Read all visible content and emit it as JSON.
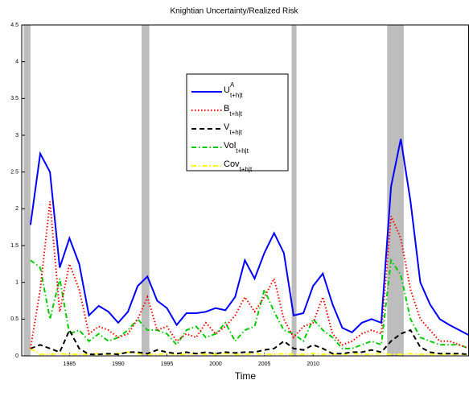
{
  "chart_data": {
    "type": "line",
    "title": "Knightian Uncertainty/Realized Risk",
    "xlabel": "Time",
    "xlim": [
      1980.1,
      2026
    ],
    "xticks": [
      1985,
      1990,
      1995,
      2000,
      2005,
      2010
    ],
    "ylim": [
      0,
      4.5
    ],
    "yticks": [
      0,
      0.5,
      1,
      1.5,
      2,
      2.5,
      3,
      3.5,
      4,
      4.5
    ],
    "recessions": [
      [
        1980.3,
        1981.0
      ],
      [
        1992.4,
        1993.2
      ],
      [
        2007.8,
        2008.3
      ],
      [
        2017.6,
        2019.3
      ]
    ],
    "recession_color": "#bdbdbd",
    "legend": "upper center",
    "x": [
      1981,
      1982,
      1983,
      1984,
      1985,
      1986,
      1987,
      1988,
      1989,
      1990,
      1991,
      1992,
      1993,
      1994,
      1995,
      1996,
      1997,
      1998,
      1999,
      2000,
      2001,
      2002,
      2003,
      2004,
      2005,
      2006,
      2007,
      2008,
      2009,
      2010,
      2011,
      2012,
      2013,
      2014,
      2015,
      2016,
      2017,
      2018,
      2019,
      2020,
      2021,
      2022,
      2023,
      2024,
      2025,
      2026
    ],
    "series": [
      {
        "name": "U",
        "name_sup": "A",
        "name_sub": "t+h|t",
        "color": "#0000ff",
        "style": "solid",
        "values": [
          1.78,
          2.75,
          2.5,
          1.2,
          1.6,
          1.25,
          0.55,
          0.68,
          0.6,
          0.45,
          0.6,
          0.95,
          1.08,
          0.75,
          0.65,
          0.42,
          0.58,
          0.58,
          0.6,
          0.65,
          0.62,
          0.8,
          1.3,
          1.05,
          1.4,
          1.67,
          1.4,
          0.55,
          0.58,
          0.95,
          1.12,
          0.7,
          0.38,
          0.32,
          0.45,
          0.5,
          0.45,
          2.3,
          2.95,
          2.1,
          1.0,
          0.7,
          0.5,
          0.42,
          0.35,
          0.28
        ]
      },
      {
        "name": "B",
        "name_sub": "t+h|t",
        "color": "#ff0000",
        "style": "dotted",
        "values": [
          0.1,
          0.9,
          2.1,
          0.6,
          1.25,
          0.9,
          0.3,
          0.4,
          0.35,
          0.25,
          0.3,
          0.5,
          0.8,
          0.35,
          0.4,
          0.2,
          0.3,
          0.25,
          0.45,
          0.3,
          0.4,
          0.55,
          0.8,
          0.6,
          0.8,
          1.05,
          0.5,
          0.25,
          0.4,
          0.45,
          0.8,
          0.3,
          0.15,
          0.2,
          0.3,
          0.35,
          0.3,
          1.9,
          1.6,
          0.9,
          0.5,
          0.35,
          0.2,
          0.2,
          0.15,
          0.1
        ]
      },
      {
        "name": "V",
        "name_sub": "t+h|t",
        "color": "#000000",
        "style": "dashed",
        "values": [
          0.1,
          0.15,
          0.1,
          0.05,
          0.35,
          0.1,
          0.02,
          0.02,
          0.03,
          0.02,
          0.05,
          0.05,
          0.03,
          0.08,
          0.05,
          0.03,
          0.05,
          0.03,
          0.05,
          0.03,
          0.05,
          0.04,
          0.05,
          0.05,
          0.08,
          0.1,
          0.2,
          0.1,
          0.08,
          0.15,
          0.1,
          0.03,
          0.03,
          0.05,
          0.05,
          0.08,
          0.05,
          0.2,
          0.3,
          0.35,
          0.12,
          0.05,
          0.03,
          0.03,
          0.03,
          0.02
        ]
      },
      {
        "name": "Vol",
        "name_sub": "t+h|t",
        "color": "#00cc00",
        "style": "dashdot",
        "values": [
          1.3,
          1.2,
          0.5,
          1.05,
          0.3,
          0.35,
          0.2,
          0.3,
          0.2,
          0.25,
          0.35,
          0.5,
          0.35,
          0.35,
          0.3,
          0.15,
          0.35,
          0.4,
          0.25,
          0.3,
          0.45,
          0.2,
          0.35,
          0.4,
          0.9,
          0.6,
          0.35,
          0.3,
          0.2,
          0.5,
          0.35,
          0.25,
          0.1,
          0.1,
          0.15,
          0.2,
          0.15,
          1.3,
          1.1,
          0.5,
          0.25,
          0.2,
          0.15,
          0.15,
          0.15,
          0.1
        ]
      },
      {
        "name": "Cov",
        "name_sub": "t+h|t",
        "color": "#ffff00",
        "style": "dashdot",
        "values": [
          0.1,
          0.02,
          0.02,
          0.03,
          0.02,
          0.02,
          0.02,
          0.03,
          0.02,
          0.03,
          0.05,
          0.03,
          0.02,
          0.02,
          0.03,
          0.02,
          0.02,
          0.03,
          0.02,
          0.02,
          0.03,
          0.02,
          0.02,
          0.03,
          0.02,
          0.02,
          0.03,
          0.02,
          0.02,
          0.03,
          0.02,
          0.02,
          0.02,
          0.03,
          0.02,
          0.02,
          0.03,
          0.02,
          0.02,
          0.03,
          0.02,
          0.02,
          0.02,
          0.02,
          0.02,
          0.02
        ]
      }
    ]
  }
}
